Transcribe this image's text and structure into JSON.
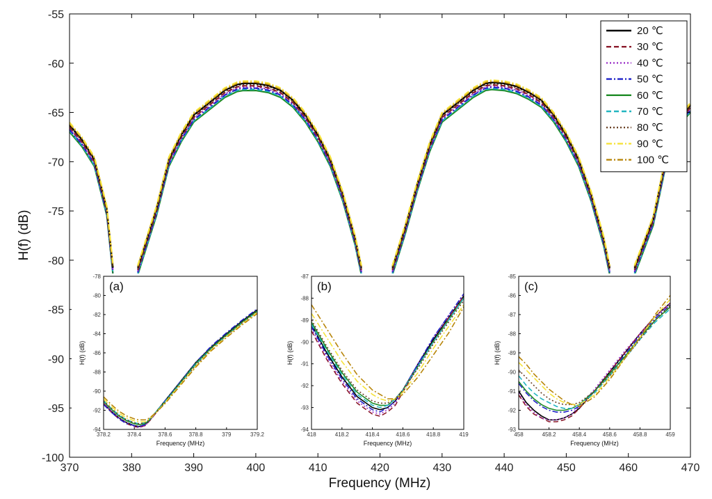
{
  "chart_data": {
    "type": "line",
    "xlabel": "Frequency (MHz)",
    "ylabel": "H(f) (dB)",
    "xlim": [
      370,
      470
    ],
    "ylim": [
      -100,
      -55
    ],
    "xticks": [
      370,
      380,
      390,
      400,
      410,
      420,
      430,
      440,
      450,
      460,
      470
    ],
    "yticks": [
      -55,
      -60,
      -65,
      -70,
      -75,
      -80,
      -85,
      -90,
      -95,
      -100
    ],
    "grid": false,
    "legend_position": "top-right",
    "series": [
      {
        "name": "20 ℃",
        "color": "#000000",
        "dash": "solid"
      },
      {
        "name": "30 ℃",
        "color": "#8b1a2b",
        "dash": "dashed"
      },
      {
        "name": "40 ℃",
        "color": "#9b30c8",
        "dash": "dotted"
      },
      {
        "name": "50 ℃",
        "color": "#1f22c8",
        "dash": "dashdot"
      },
      {
        "name": "60 ℃",
        "color": "#1d8a25",
        "dash": "solid"
      },
      {
        "name": "70 ℃",
        "color": "#22b5c0",
        "dash": "dashed"
      },
      {
        "name": "80 ℃",
        "color": "#6b4226",
        "dash": "dotted"
      },
      {
        "name": "90 ℃",
        "color": "#f5e23a",
        "dash": "dashdot"
      },
      {
        "name": "100 ℃",
        "color": "#b8860b",
        "dash": "dashdot"
      }
    ],
    "x": [
      370,
      372,
      374,
      376,
      377,
      380.5,
      381,
      384,
      386,
      388,
      390,
      393,
      395,
      397,
      398,
      400,
      402,
      404,
      406,
      408,
      410,
      412,
      414,
      416,
      417,
      421,
      422,
      424,
      426,
      428,
      430,
      433,
      435,
      437,
      438,
      440,
      442,
      444,
      446,
      448,
      450,
      452,
      454,
      456,
      457,
      460,
      461,
      464,
      466,
      468,
      470
    ],
    "y_main": [
      -66.5,
      -68,
      -70,
      -75,
      -81,
      null,
      -81,
      -75,
      -70,
      -67.5,
      -65.5,
      -64,
      -63,
      -62.4,
      -62.3,
      -62.3,
      -62.5,
      -63,
      -64,
      -65.5,
      -67.5,
      -70,
      -73.5,
      -78,
      -81,
      null,
      -81,
      -77,
      -72.5,
      -68.5,
      -65.5,
      -64,
      -63,
      -62.3,
      -62.2,
      -62.3,
      -62.6,
      -63.2,
      -64,
      -65.5,
      -67.5,
      -70,
      -73.5,
      -78,
      -81,
      null,
      -81,
      -76,
      -70,
      -66,
      -64.5
    ],
    "insets": [
      {
        "label": "(a)",
        "xlim": [
          378.2,
          379.2
        ],
        "ylim": [
          -94,
          -78
        ],
        "xticks": [
          "378.2",
          "378.4",
          "378.6",
          "378.8",
          "379",
          "379.2"
        ],
        "yticks": [
          "-78",
          "-80",
          "-82",
          "-84",
          "-86",
          "-88",
          "-90",
          "-92",
          "-94"
        ],
        "xlabel": "Frequency (MHz)",
        "ylabel": "H(f) (dB)",
        "x": [
          378.2,
          378.25,
          378.3,
          378.35,
          378.4,
          378.43,
          378.47,
          378.5,
          378.55,
          378.6,
          378.7,
          378.8,
          378.9,
          379,
          379.1,
          379.2
        ],
        "series_values": [
          [
            -91.3,
            -92.1,
            -92.8,
            -93.3,
            -93.6,
            -93.7,
            -93.5,
            -93.0,
            -92.0,
            -91.0,
            -89.0,
            -87.0,
            -85.4,
            -84.0,
            -82.7,
            -81.5
          ],
          [
            -91.3,
            -92.2,
            -92.9,
            -93.4,
            -93.7,
            -93.8,
            -93.6,
            -93.1,
            -92.1,
            -91.1,
            -89.1,
            -87.1,
            -85.5,
            -84.1,
            -82.8,
            -81.6
          ],
          [
            -91.2,
            -92.1,
            -92.8,
            -93.3,
            -93.7,
            -93.8,
            -93.6,
            -93.1,
            -92.1,
            -91.1,
            -89.1,
            -87.1,
            -85.5,
            -84.1,
            -82.8,
            -81.6
          ],
          [
            -91.4,
            -92.2,
            -92.9,
            -93.4,
            -93.6,
            -93.7,
            -93.5,
            -93.0,
            -92.0,
            -91.0,
            -89.0,
            -87.0,
            -85.3,
            -83.9,
            -82.6,
            -81.4
          ],
          [
            -91.1,
            -91.9,
            -92.6,
            -93.1,
            -93.4,
            -93.5,
            -93.4,
            -93.0,
            -92.0,
            -91.1,
            -89.1,
            -87.1,
            -85.5,
            -84.1,
            -82.8,
            -81.6
          ],
          [
            -91.0,
            -91.8,
            -92.5,
            -93.0,
            -93.3,
            -93.4,
            -93.3,
            -92.9,
            -92.0,
            -91.1,
            -89.2,
            -87.2,
            -85.6,
            -84.2,
            -82.9,
            -81.7
          ],
          [
            -91.0,
            -91.8,
            -92.5,
            -93.0,
            -93.3,
            -93.4,
            -93.3,
            -92.9,
            -92.1,
            -91.2,
            -89.2,
            -87.3,
            -85.6,
            -84.2,
            -82.9,
            -81.7
          ],
          [
            -90.8,
            -91.6,
            -92.3,
            -92.8,
            -93.1,
            -93.2,
            -93.2,
            -92.9,
            -92.1,
            -91.2,
            -89.3,
            -87.4,
            -85.7,
            -84.3,
            -83.0,
            -81.8
          ],
          [
            -90.6,
            -91.4,
            -92.1,
            -92.6,
            -92.9,
            -93.0,
            -93.0,
            -92.8,
            -92.1,
            -91.3,
            -89.4,
            -87.5,
            -85.8,
            -84.4,
            -83.1,
            -81.9
          ]
        ]
      },
      {
        "label": "(b)",
        "xlim": [
          418,
          419
        ],
        "ylim": [
          -94,
          -87
        ],
        "xticks": [
          "418",
          "418.2",
          "418.4",
          "418.6",
          "418.8",
          "419"
        ],
        "yticks": [
          "-87",
          "-88",
          "-89",
          "-90",
          "-91",
          "-92",
          "-93",
          "-94"
        ],
        "xlabel": "Frequency (MHz)",
        "ylabel": "H(f) (dB)",
        "x": [
          418,
          418.1,
          418.2,
          418.3,
          418.4,
          418.45,
          418.5,
          418.55,
          418.6,
          418.7,
          418.8,
          418.9,
          419
        ],
        "series_values": [
          [
            -89.2,
            -90.5,
            -91.6,
            -92.5,
            -93.0,
            -93.1,
            -93.0,
            -92.7,
            -92.2,
            -91.0,
            -89.9,
            -88.9,
            -87.9
          ],
          [
            -89.5,
            -90.8,
            -91.9,
            -92.8,
            -93.3,
            -93.4,
            -93.2,
            -92.9,
            -92.3,
            -91.1,
            -90.0,
            -88.9,
            -87.9
          ],
          [
            -89.4,
            -90.7,
            -91.8,
            -92.7,
            -93.2,
            -93.3,
            -93.1,
            -92.8,
            -92.2,
            -91.0,
            -89.8,
            -88.8,
            -87.8
          ],
          [
            -89.3,
            -90.6,
            -91.7,
            -92.6,
            -93.1,
            -93.2,
            -93.0,
            -92.7,
            -92.2,
            -91.0,
            -89.8,
            -88.8,
            -87.8
          ],
          [
            -89.1,
            -90.3,
            -91.4,
            -92.3,
            -92.8,
            -92.9,
            -92.9,
            -92.6,
            -92.2,
            -91.1,
            -90.0,
            -89.0,
            -88.0
          ],
          [
            -89.2,
            -90.4,
            -91.5,
            -92.4,
            -92.9,
            -93.0,
            -92.9,
            -92.6,
            -92.2,
            -91.1,
            -90.0,
            -89.0,
            -88.0
          ],
          [
            -89.0,
            -90.2,
            -91.3,
            -92.2,
            -92.7,
            -92.8,
            -92.8,
            -92.6,
            -92.2,
            -91.2,
            -90.1,
            -89.1,
            -88.1
          ],
          [
            -88.7,
            -89.8,
            -90.9,
            -91.8,
            -92.4,
            -92.6,
            -92.7,
            -92.6,
            -92.3,
            -91.4,
            -90.3,
            -89.3,
            -88.3
          ],
          [
            -88.3,
            -89.4,
            -90.5,
            -91.5,
            -92.2,
            -92.4,
            -92.6,
            -92.6,
            -92.4,
            -91.6,
            -90.6,
            -89.6,
            -88.4
          ]
        ]
      },
      {
        "label": "(c)",
        "xlim": [
          458,
          459
        ],
        "ylim": [
          -93,
          -85
        ],
        "xticks": [
          "458",
          "458.2",
          "458.4",
          "458.6",
          "458.8",
          "459"
        ],
        "yticks": [
          "-85",
          "-86",
          "-87",
          "-88",
          "-89",
          "-90",
          "-91",
          "-92",
          "-93"
        ],
        "xlabel": "Frequency (MHz)",
        "ylabel": "H(f) (dB)",
        "x": [
          458,
          458.05,
          458.1,
          458.15,
          458.2,
          458.25,
          458.3,
          458.35,
          458.4,
          458.5,
          458.6,
          458.7,
          458.8,
          458.9,
          459
        ],
        "series_values": [
          [
            -91.0,
            -91.6,
            -92.0,
            -92.3,
            -92.5,
            -92.5,
            -92.4,
            -92.2,
            -91.9,
            -91.0,
            -90.0,
            -89.0,
            -88.0,
            -87.1,
            -86.4
          ],
          [
            -91.2,
            -91.8,
            -92.2,
            -92.4,
            -92.6,
            -92.6,
            -92.5,
            -92.3,
            -91.9,
            -91.0,
            -90.0,
            -89.0,
            -88.0,
            -87.1,
            -86.4
          ],
          [
            -91.1,
            -91.7,
            -92.1,
            -92.4,
            -92.5,
            -92.5,
            -92.4,
            -92.2,
            -91.8,
            -90.9,
            -89.9,
            -88.9,
            -88.0,
            -87.1,
            -86.4
          ],
          [
            -90.6,
            -91.1,
            -91.5,
            -91.8,
            -92.0,
            -92.1,
            -92.1,
            -92.0,
            -91.8,
            -91.0,
            -90.1,
            -89.1,
            -88.1,
            -87.2,
            -86.5
          ],
          [
            -90.5,
            -91.0,
            -91.4,
            -91.7,
            -91.9,
            -92.0,
            -92.0,
            -91.9,
            -91.7,
            -91.0,
            -90.1,
            -89.2,
            -88.2,
            -87.3,
            -86.6
          ],
          [
            -90.2,
            -90.7,
            -91.1,
            -91.4,
            -91.6,
            -91.8,
            -91.9,
            -91.9,
            -91.7,
            -91.1,
            -90.2,
            -89.3,
            -88.3,
            -87.4,
            -86.7
          ],
          [
            -89.9,
            -90.3,
            -90.7,
            -91.1,
            -91.4,
            -91.6,
            -91.7,
            -91.7,
            -91.6,
            -91.0,
            -90.2,
            -89.3,
            -88.3,
            -87.3,
            -86.5
          ],
          [
            -89.5,
            -89.9,
            -90.3,
            -90.7,
            -91.1,
            -91.4,
            -91.6,
            -91.7,
            -91.7,
            -91.2,
            -90.3,
            -89.3,
            -88.2,
            -87.1,
            -86.2
          ],
          [
            -89.2,
            -89.6,
            -90.1,
            -90.5,
            -90.9,
            -91.2,
            -91.5,
            -91.7,
            -91.8,
            -91.3,
            -90.4,
            -89.3,
            -88.2,
            -87.0,
            -86.0
          ]
        ]
      }
    ]
  }
}
